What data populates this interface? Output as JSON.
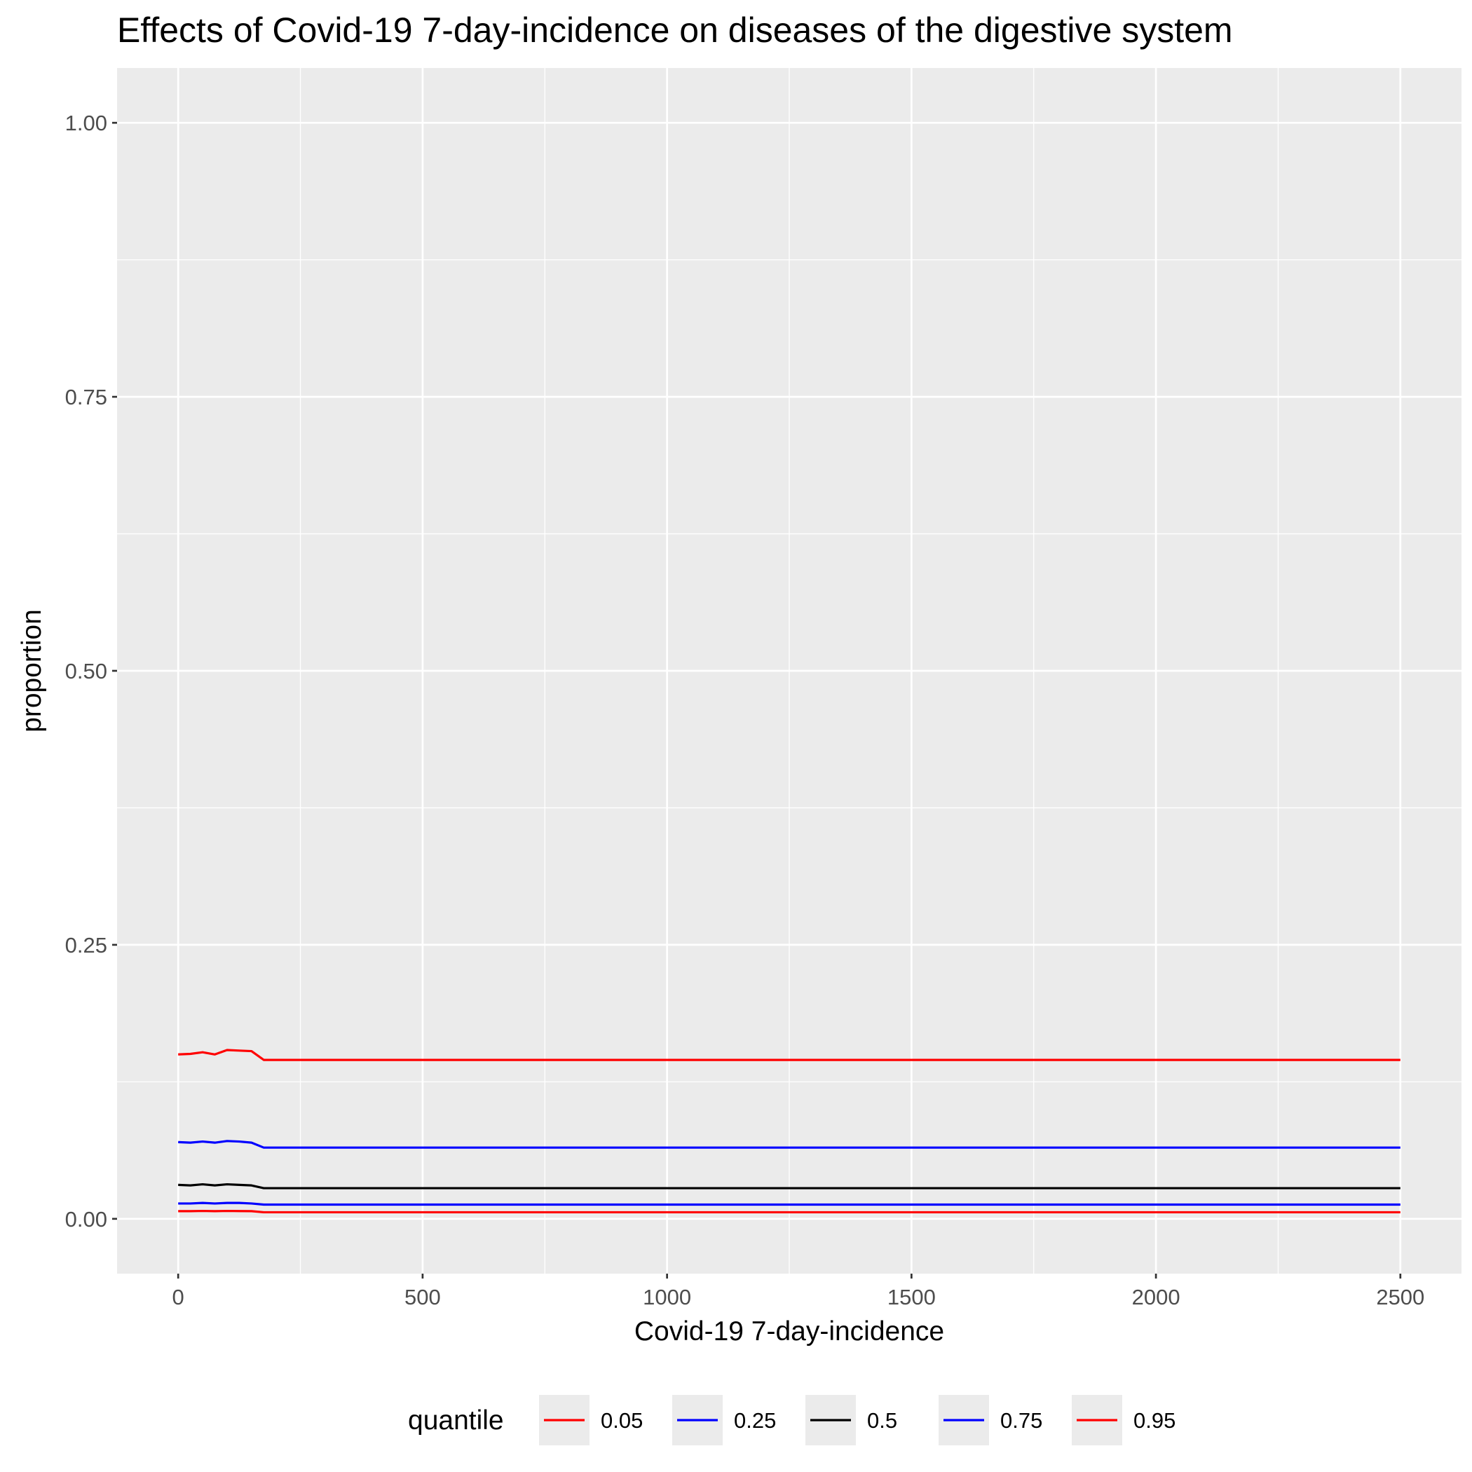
{
  "chart_data": {
    "type": "line",
    "title": "Effects of Covid-19 7-day-incidence on diseases of the digestive system",
    "xlabel": "Covid-19 7-day-incidence",
    "ylabel": "proportion",
    "xlim": [
      -125,
      2625
    ],
    "ylim": [
      -0.05,
      1.05
    ],
    "x_ticks": [
      0,
      500,
      1000,
      1500,
      2000,
      2500
    ],
    "x_tick_labels": [
      "0",
      "500",
      "1000",
      "1500",
      "2000",
      "2500"
    ],
    "y_ticks": [
      0,
      0.25,
      0.5,
      0.75,
      1.0
    ],
    "y_tick_labels": [
      "0.00",
      "0.25",
      "0.50",
      "0.75",
      "1.00"
    ],
    "grid": true,
    "legend": {
      "title": "quantile",
      "position": "bottom"
    },
    "x": [
      0,
      25,
      50,
      75,
      100,
      125,
      150,
      175,
      200,
      500,
      1000,
      1500,
      2000,
      2500
    ],
    "series": [
      {
        "name": "0.05",
        "color": "#ff0000",
        "values": [
          0.007,
          0.007,
          0.0072,
          0.007,
          0.0072,
          0.0071,
          0.007,
          0.006,
          0.006,
          0.006,
          0.006,
          0.006,
          0.006,
          0.006
        ]
      },
      {
        "name": "0.25",
        "color": "#0000ff",
        "values": [
          0.014,
          0.014,
          0.0145,
          0.014,
          0.0145,
          0.0145,
          0.014,
          0.013,
          0.013,
          0.013,
          0.013,
          0.013,
          0.013,
          0.013
        ]
      },
      {
        "name": "0.5",
        "color": "#000000",
        "values": [
          0.031,
          0.0305,
          0.0315,
          0.0305,
          0.0315,
          0.031,
          0.0305,
          0.028,
          0.028,
          0.028,
          0.028,
          0.028,
          0.028,
          0.028
        ]
      },
      {
        "name": "0.75",
        "color": "#0000ff",
        "values": [
          0.07,
          0.0695,
          0.0705,
          0.0695,
          0.071,
          0.0705,
          0.0695,
          0.065,
          0.065,
          0.065,
          0.065,
          0.065,
          0.065,
          0.065
        ]
      },
      {
        "name": "0.95",
        "color": "#ff0000",
        "values": [
          0.15,
          0.1505,
          0.152,
          0.15,
          0.154,
          0.1535,
          0.153,
          0.145,
          0.145,
          0.145,
          0.145,
          0.145,
          0.145,
          0.145
        ]
      }
    ]
  }
}
